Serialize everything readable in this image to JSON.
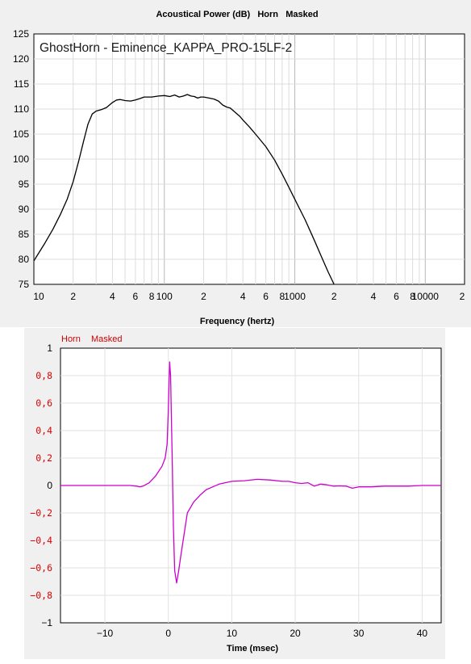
{
  "chart_data": [
    {
      "type": "line",
      "title": "Acoustical Power (dB)   Horn   Masked",
      "inner_title": "GhostHorn - Eminence_KAPPA_PRO-15LF-2",
      "xlabel": "Frequency (hertz)",
      "ylabel": "",
      "x_scale": "log",
      "xlim": [
        10,
        20000
      ],
      "ylim": [
        75,
        125
      ],
      "y_ticks": [
        "125",
        "120",
        "115",
        "110",
        "105",
        "100",
        "95",
        "90",
        "85",
        "80",
        "75"
      ],
      "x_tick_labels": [
        {
          "f": 10,
          "text": "10"
        },
        {
          "f": 20,
          "text": "2"
        },
        {
          "f": 40,
          "text": "4"
        },
        {
          "f": 60,
          "text": "6"
        },
        {
          "f": 80,
          "text": "8"
        },
        {
          "f": 100,
          "text": "100"
        },
        {
          "f": 200,
          "text": "2"
        },
        {
          "f": 400,
          "text": "4"
        },
        {
          "f": 600,
          "text": "6"
        },
        {
          "f": 800,
          "text": "8"
        },
        {
          "f": 1000,
          "text": "1000"
        },
        {
          "f": 2000,
          "text": "2"
        },
        {
          "f": 4000,
          "text": "4"
        },
        {
          "f": 6000,
          "text": "6"
        },
        {
          "f": 8000,
          "text": "8"
        },
        {
          "f": 10000,
          "text": "10000"
        },
        {
          "f": 20000,
          "text": "2"
        }
      ],
      "grid": true,
      "series": [
        {
          "color": "#000000",
          "x": [
            10,
            12,
            14,
            16,
            18,
            20,
            22,
            24,
            26,
            28,
            30,
            33,
            36,
            40,
            43,
            46,
            50,
            55,
            60,
            65,
            70,
            75,
            80,
            90,
            100,
            110,
            120,
            130,
            140,
            150,
            160,
            170,
            180,
            190,
            200,
            220,
            240,
            260,
            280,
            300,
            320,
            350,
            380,
            400,
            450,
            500,
            600,
            700,
            800,
            900,
            1000,
            1200,
            1400,
            1600,
            1800,
            2000
          ],
          "y": [
            79.7,
            83.0,
            86.0,
            89.0,
            92.0,
            95.5,
            99.5,
            103.5,
            107.0,
            109.0,
            109.6,
            109.9,
            110.3,
            111.3,
            111.8,
            111.9,
            111.7,
            111.6,
            111.8,
            112.1,
            112.4,
            112.4,
            112.4,
            112.6,
            112.7,
            112.5,
            112.8,
            112.4,
            112.6,
            112.9,
            112.6,
            112.5,
            112.2,
            112.4,
            112.4,
            112.2,
            112.0,
            111.6,
            110.8,
            110.4,
            110.2,
            109.3,
            108.5,
            107.8,
            106.4,
            105.0,
            102.5,
            99.8,
            97.0,
            94.4,
            92.0,
            87.9,
            84.0,
            80.5,
            77.5,
            75.0
          ]
        }
      ]
    },
    {
      "type": "line",
      "title": "",
      "legend": [
        "Horn",
        "Masked"
      ],
      "xlabel": "Time (msec)",
      "ylabel": "",
      "xlim": [
        -17,
        43
      ],
      "ylim": [
        -1,
        1
      ],
      "x_ticks": [
        -10,
        0,
        10,
        20,
        30,
        40
      ],
      "x_tick_labels": [
        "−10",
        "0",
        "10",
        "20",
        "30",
        "40"
      ],
      "y_tick_labels": [
        {
          "v": 1,
          "text": "1",
          "color": "#000000"
        },
        {
          "v": 0.8,
          "text": "0,8",
          "color": "#dd0000"
        },
        {
          "v": 0.6,
          "text": "0,6",
          "color": "#dd0000"
        },
        {
          "v": 0.4,
          "text": "0,4",
          "color": "#dd0000"
        },
        {
          "v": 0.2,
          "text": "0,2",
          "color": "#dd0000"
        },
        {
          "v": 0,
          "text": "0",
          "color": "#000000"
        },
        {
          "v": -0.2,
          "text": "−0,2",
          "color": "#dd0000"
        },
        {
          "v": -0.4,
          "text": "−0,4",
          "color": "#dd0000"
        },
        {
          "v": -0.6,
          "text": "−0,6",
          "color": "#dd0000"
        },
        {
          "v": -0.8,
          "text": "−0,8",
          "color": "#dd0000"
        },
        {
          "v": -1,
          "text": "−1",
          "color": "#000000"
        }
      ],
      "grid": true,
      "series": [
        {
          "color": "#cc00cc",
          "x": [
            -17,
            -10,
            -6,
            -5,
            -4.5,
            -4,
            -3,
            -2,
            -1,
            -0.5,
            -0.2,
            0,
            0.2,
            0.35,
            0.6,
            0.8,
            1.0,
            1.3,
            1.6,
            2,
            2.5,
            3,
            4,
            5,
            6,
            7,
            8,
            10,
            12,
            14,
            16,
            18,
            19,
            20,
            21,
            22,
            23,
            24,
            25,
            26,
            27,
            28,
            29,
            30,
            32,
            34,
            36,
            38,
            40,
            43
          ],
          "y": [
            0.0,
            0.0,
            0.0,
            -0.005,
            -0.01,
            -0.005,
            0.02,
            0.07,
            0.14,
            0.2,
            0.3,
            0.55,
            0.9,
            0.8,
            0.2,
            -0.3,
            -0.62,
            -0.71,
            -0.63,
            -0.5,
            -0.35,
            -0.2,
            -0.12,
            -0.07,
            -0.03,
            -0.01,
            0.01,
            0.03,
            0.035,
            0.045,
            0.04,
            0.03,
            0.03,
            0.02,
            0.015,
            0.02,
            -0.005,
            0.01,
            0.005,
            -0.005,
            -0.003,
            -0.005,
            -0.02,
            -0.01,
            -0.01,
            -0.005,
            -0.005,
            -0.005,
            0.0,
            0.0
          ]
        }
      ]
    }
  ]
}
